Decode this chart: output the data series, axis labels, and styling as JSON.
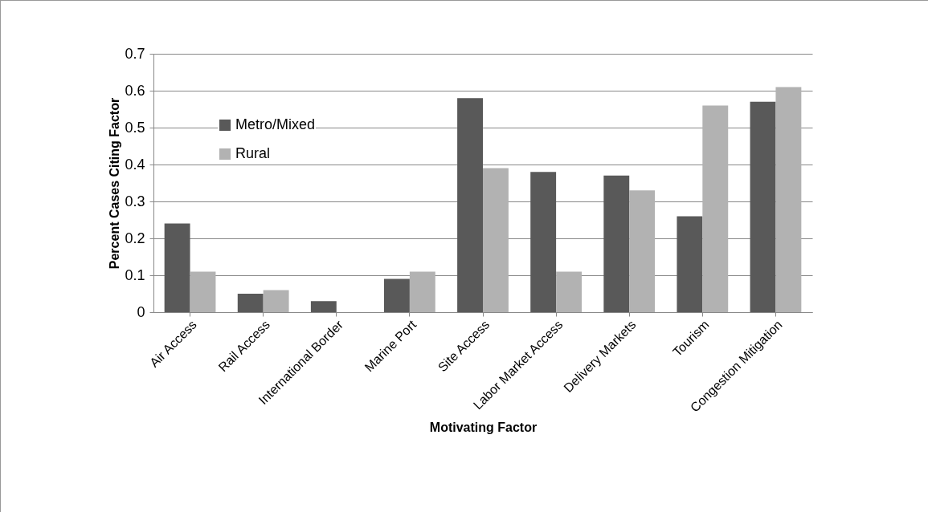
{
  "chart_data": {
    "type": "bar",
    "xlabel": "Motivating Factor",
    "ylabel": "Percent Cases Citing Factor",
    "categories": [
      "Air Access",
      "Rail Access",
      "International Border",
      "Marine Port",
      "Site Access",
      "Labor Market Access",
      "Delivery Markets",
      "Tourism",
      "Congestion Mitigation"
    ],
    "series": [
      {
        "name": "Metro/Mixed",
        "color": "#595959",
        "values": [
          0.24,
          0.05,
          0.03,
          0.09,
          0.58,
          0.38,
          0.37,
          0.26,
          0.57
        ]
      },
      {
        "name": "Rural",
        "color": "#b2b2b2",
        "values": [
          0.11,
          0.06,
          0,
          0.11,
          0.39,
          0.11,
          0.33,
          0.56,
          0.61
        ]
      }
    ],
    "ylim": [
      0,
      0.7
    ],
    "yticks": [
      0,
      0.1,
      0.2,
      0.3,
      0.4,
      0.5,
      0.6,
      0.7
    ],
    "grid": "y",
    "legend": "top left"
  }
}
